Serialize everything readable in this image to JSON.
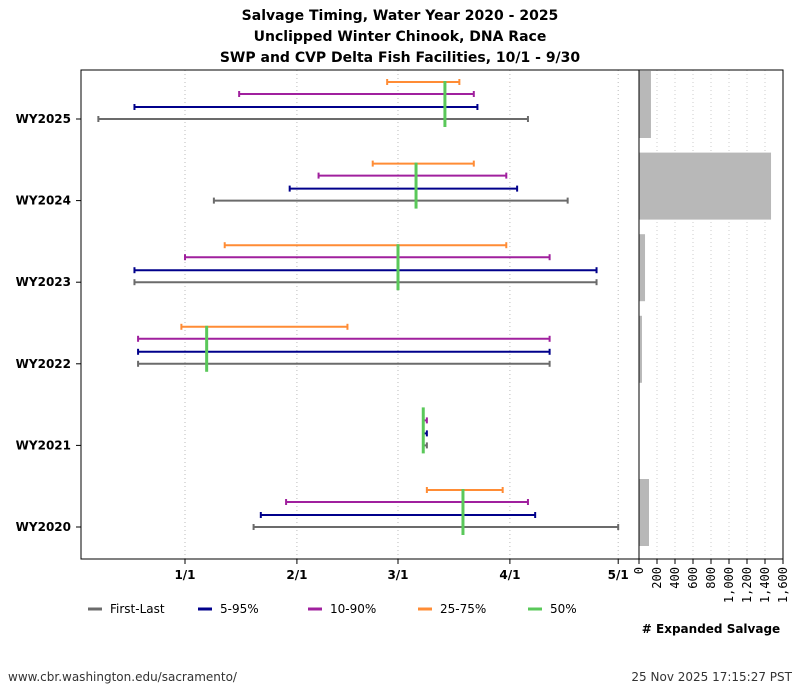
{
  "chart_data": {
    "type": "range",
    "title": [
      "Salvage Timing, Water Year 2020 - 2025",
      "Unclipped Winter Chinook, DNA Race",
      "SWP and CVP Delta Fish Facilities, 10/1 - 9/30"
    ],
    "x_ticks": [
      "1/1",
      "2/1",
      "3/1",
      "4/1",
      "5/1"
    ],
    "categories": [
      "WY2025",
      "WY2024",
      "WY2023",
      "WY2022",
      "WY2021",
      "WY2020"
    ],
    "legend": [
      {
        "key": "fl",
        "name": "First-Last",
        "color": "#6b6b6b"
      },
      {
        "key": "p5",
        "name": "5-95%",
        "color": "#00008b"
      },
      {
        "key": "p10",
        "name": "10-90%",
        "color": "#a0209e"
      },
      {
        "key": "p25",
        "name": "25-75%",
        "color": "#ff8c35"
      },
      {
        "key": "p50",
        "name": "50%",
        "color": "#5ac85a"
      }
    ],
    "legend_position": "bottom",
    "ranges": {
      "WY2025": {
        "fl": [
          "12/8",
          "4/6"
        ],
        "p5": [
          "12/18",
          "3/23"
        ],
        "p10": [
          "1/16",
          "3/22"
        ],
        "p25": [
          "2/26",
          "3/18"
        ],
        "p50": "3/14"
      },
      "WY2024": {
        "fl": [
          "1/9",
          "4/17"
        ],
        "p5": [
          "1/30",
          "4/3"
        ],
        "p10": [
          "2/7",
          "3/31"
        ],
        "p25": [
          "2/22",
          "3/22"
        ],
        "p50": "3/6"
      },
      "WY2023": {
        "fl": [
          "12/18",
          "4/25"
        ],
        "p5": [
          "12/18",
          "4/25"
        ],
        "p10": [
          "1/1",
          "4/12"
        ],
        "p25": [
          "1/12",
          "3/31"
        ],
        "p50": "3/1"
      },
      "WY2022": {
        "fl": [
          "12/19",
          "4/12"
        ],
        "p5": [
          "12/19",
          "4/12"
        ],
        "p10": [
          "12/19",
          "4/12"
        ],
        "p25": [
          "12/31",
          "2/15"
        ],
        "p50": "1/7"
      },
      "WY2021": {
        "fl": [
          "3/8",
          "3/9"
        ],
        "p5": [
          "3/8",
          "3/9"
        ],
        "p10": [
          "3/8",
          "3/9"
        ],
        "p25": [
          "3/8",
          "3/8"
        ],
        "p50": "3/8"
      },
      "WY2020": {
        "fl": [
          "1/20",
          "5/1"
        ],
        "p5": [
          "1/22",
          "4/8"
        ],
        "p10": [
          "1/29",
          "4/6"
        ],
        "p25": [
          "3/9",
          "3/30"
        ],
        "p50": "3/19"
      }
    },
    "salvage": {
      "xlabel": "# Expanded Salvage",
      "xlim": [
        0,
        1600
      ],
      "x_ticks": [
        "0",
        "200",
        "400",
        "600",
        "800",
        "1,000",
        "1,200",
        "1,400",
        "1,600"
      ],
      "values": {
        "WY2025": 133,
        "WY2024": 1467,
        "WY2023": 67,
        "WY2022": 33,
        "WY2021": 0,
        "WY2020": 111
      },
      "color": "#b8b8b8"
    },
    "grid": true
  },
  "footer": {
    "url": "www.cbr.washington.edu/sacramento/",
    "timestamp": "25 Nov 2025 17:15:27 PST"
  }
}
